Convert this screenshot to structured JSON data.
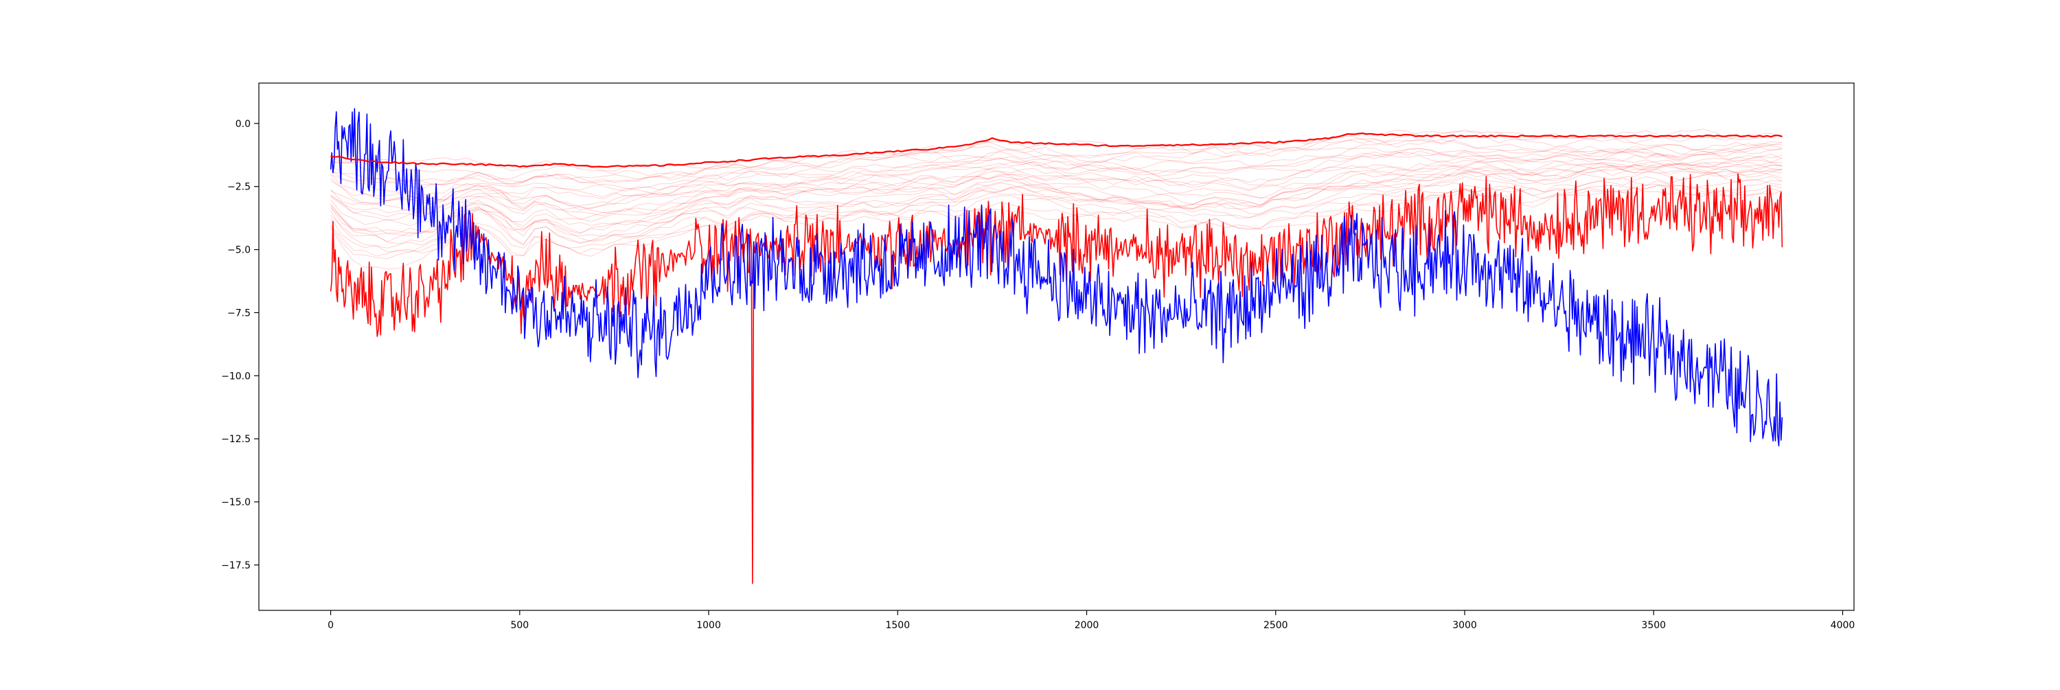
{
  "chart_data": {
    "type": "line",
    "title": "",
    "xlabel": "",
    "ylabel": "",
    "xlim": [
      -190,
      4030
    ],
    "ylim": [
      -19.3,
      1.6
    ],
    "grid": false,
    "legend": "none",
    "x_ticks": [
      0,
      500,
      1000,
      1500,
      2000,
      2500,
      3000,
      3500,
      4000
    ],
    "x_tick_labels": [
      "0",
      "500",
      "1000",
      "1500",
      "2000",
      "2500",
      "3000",
      "3500",
      "4000"
    ],
    "y_ticks": [
      0.0,
      -2.5,
      -5.0,
      -7.5,
      -10.0,
      -12.5,
      -15.0,
      -17.5
    ],
    "y_tick_labels": [
      "0.0",
      "−2.5",
      "−5.0",
      "−7.5",
      "−10.0",
      "−12.5",
      "−15.0",
      "−17.5"
    ],
    "colors": {
      "blue": "#0000ff",
      "red": "#ff0000",
      "axis": "#000000"
    },
    "series": [
      {
        "color": "#ff0000",
        "style": "solid",
        "x": [
          0,
          100,
          250,
          350,
          500,
          600,
          700,
          800,
          900,
          1000,
          1100,
          1200,
          1300,
          1400,
          1500,
          1600,
          1700,
          1750,
          1800,
          1900,
          2000,
          2100,
          2200,
          2300,
          2400,
          2500,
          2600,
          2650,
          2700,
          2800,
          2900,
          3000,
          3200,
          3400,
          3600,
          3840
        ],
        "y": [
          -1.3,
          -1.5,
          -1.6,
          -1.6,
          -1.7,
          -1.6,
          -1.7,
          -1.7,
          -1.65,
          -1.55,
          -1.45,
          -1.35,
          -1.3,
          -1.2,
          -1.1,
          -1.0,
          -0.8,
          -0.6,
          -0.75,
          -0.8,
          -0.85,
          -0.9,
          -0.85,
          -0.85,
          -0.8,
          -0.75,
          -0.65,
          -0.55,
          -0.4,
          -0.45,
          -0.5,
          -0.5,
          -0.5,
          -0.5,
          -0.5,
          -0.5
        ]
      },
      {
        "color": "#ff0000",
        "style": "solid",
        "x": [
          0,
          50,
          100,
          150,
          200,
          250,
          300,
          350,
          400,
          450,
          500,
          550,
          600,
          650,
          700,
          750,
          800,
          850,
          900,
          950,
          1000,
          1050,
          1100,
          1150,
          1200,
          1250,
          1300,
          1350,
          1400,
          1450,
          1500,
          1550,
          1600,
          1650,
          1700,
          1750,
          1800,
          1850,
          1900,
          1950,
          2000,
          2050,
          2100,
          2150,
          2200,
          2250,
          2300,
          2350,
          2400,
          2450,
          2500,
          2550,
          2600,
          2650,
          2700,
          2750,
          2800,
          2850,
          2900,
          2950,
          3000,
          3050,
          3100,
          3150,
          3200,
          3300,
          3400,
          3500,
          3600,
          3700,
          3840
        ],
        "y": [
          -5.2,
          -6.8,
          -7.0,
          -7.1,
          -6.9,
          -6.8,
          -6.2,
          -5.0,
          -4.7,
          -5.6,
          -6.9,
          -5.5,
          -6.3,
          -6.7,
          -6.5,
          -6.3,
          -6.0,
          -5.8,
          -5.5,
          -5.1,
          -4.8,
          -5.2,
          -4.7,
          -4.8,
          -5.0,
          -4.9,
          -4.8,
          -4.9,
          -4.6,
          -4.8,
          -4.9,
          -4.7,
          -4.5,
          -4.9,
          -4.4,
          -4.4,
          -4.2,
          -4.3,
          -4.5,
          -4.7,
          -4.8,
          -4.9,
          -4.9,
          -5.0,
          -5.2,
          -5.4,
          -5.3,
          -5.2,
          -5.4,
          -5.6,
          -5.2,
          -5.1,
          -4.9,
          -4.6,
          -4.4,
          -4.3,
          -4.2,
          -4.0,
          -3.8,
          -3.6,
          -3.4,
          -3.5,
          -3.7,
          -3.9,
          -4.1,
          -3.6,
          -3.5,
          -3.4,
          -3.6,
          -3.7,
          -3.6
        ]
      },
      {
        "color": "#0000ff",
        "style": "solid",
        "x": [
          0,
          50,
          100,
          150,
          200,
          250,
          300,
          350,
          400,
          450,
          500,
          550,
          600,
          650,
          700,
          750,
          800,
          850,
          900,
          950,
          1000,
          1050,
          1100,
          1150,
          1200,
          1250,
          1300,
          1350,
          1400,
          1450,
          1500,
          1550,
          1600,
          1650,
          1700,
          1750,
          1800,
          1850,
          1900,
          1950,
          2000,
          2050,
          2100,
          2150,
          2200,
          2250,
          2300,
          2350,
          2400,
          2450,
          2500,
          2550,
          2600,
          2650,
          2700,
          2750,
          2800,
          2850,
          2900,
          2950,
          3000,
          3050,
          3100,
          3150,
          3200,
          3250,
          3300,
          3350,
          3400,
          3450,
          3500,
          3550,
          3600,
          3650,
          3700,
          3750,
          3800,
          3840
        ],
        "y": [
          -0.5,
          -0.8,
          -1.2,
          -1.8,
          -2.4,
          -3.0,
          -3.8,
          -4.6,
          -5.4,
          -6.1,
          -6.8,
          -7.3,
          -7.6,
          -7.8,
          -8.0,
          -8.1,
          -8.2,
          -8.3,
          -8.0,
          -6.8,
          -5.8,
          -5.6,
          -5.5,
          -5.6,
          -5.7,
          -5.8,
          -5.7,
          -5.6,
          -5.5,
          -5.6,
          -5.6,
          -5.4,
          -5.2,
          -5.0,
          -4.8,
          -4.9,
          -5.2,
          -5.6,
          -6.0,
          -6.4,
          -7.0,
          -7.2,
          -7.4,
          -7.6,
          -7.6,
          -7.5,
          -7.6,
          -7.6,
          -7.4,
          -7.0,
          -6.6,
          -6.4,
          -6.2,
          -5.8,
          -5.2,
          -5.4,
          -5.6,
          -5.8,
          -5.4,
          -5.3,
          -5.4,
          -5.6,
          -6.0,
          -6.4,
          -6.8,
          -7.2,
          -7.6,
          -8.0,
          -8.4,
          -8.6,
          -8.8,
          -9.2,
          -9.4,
          -9.8,
          -10.3,
          -10.8,
          -11.3,
          -11.5
        ]
      }
    ]
  }
}
